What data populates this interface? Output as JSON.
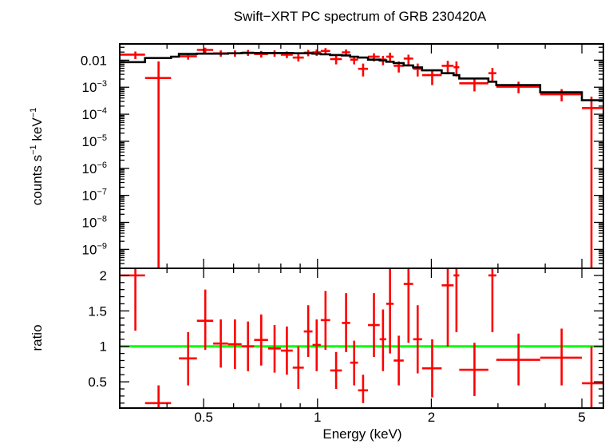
{
  "chart_data": [
    {
      "type": "scatter",
      "title": "Swift−XRT PC spectrum of GRB 230420A",
      "ylabel_main": "counts s",
      "ylabel_exp1": "−1",
      "ylabel_mid": " keV",
      "ylabel_exp2": "−1",
      "xscale": "log",
      "yscale": "log",
      "xlim": [
        0.3,
        5.7
      ],
      "ylim": [
        2e-10,
        0.04
      ],
      "y_ticks": [
        {
          "value": 0.01,
          "base": "0.01",
          "exp": ""
        },
        {
          "value": 0.001,
          "base": "10",
          "exp": "−3"
        },
        {
          "value": 0.0001,
          "base": "10",
          "exp": "−4"
        },
        {
          "value": 1e-05,
          "base": "10",
          "exp": "−5"
        },
        {
          "value": 1e-06,
          "base": "10",
          "exp": "−6"
        },
        {
          "value": 1e-07,
          "base": "10",
          "exp": "−7"
        },
        {
          "value": 1e-08,
          "base": "10",
          "exp": "−8"
        },
        {
          "value": 1e-09,
          "base": "10",
          "exp": "−9"
        }
      ],
      "data_color": "#ff0000",
      "model_color": "#000000",
      "series": [
        {
          "points": [
            {
              "x": 0.33,
              "xlo": 0.3,
              "xhi": 0.35,
              "y": 0.016,
              "ylo": 0.011,
              "yhi": 0.021
            },
            {
              "x": 0.38,
              "xlo": 0.35,
              "xhi": 0.41,
              "y": 0.0022,
              "ylo": 2e-10,
              "yhi": 0.009
            },
            {
              "x": 0.455,
              "xlo": 0.43,
              "xhi": 0.48,
              "y": 0.014,
              "ylo": 0.0105,
              "yhi": 0.018
            },
            {
              "x": 0.505,
              "xlo": 0.48,
              "xhi": 0.53,
              "y": 0.024,
              "ylo": 0.019,
              "yhi": 0.029
            },
            {
              "x": 0.555,
              "xlo": 0.53,
              "xhi": 0.58,
              "y": 0.018,
              "ylo": 0.0135,
              "yhi": 0.023
            },
            {
              "x": 0.605,
              "xlo": 0.58,
              "xhi": 0.63,
              "y": 0.018,
              "ylo": 0.0135,
              "yhi": 0.023
            },
            {
              "x": 0.655,
              "xlo": 0.63,
              "xhi": 0.68,
              "y": 0.019,
              "ylo": 0.0145,
              "yhi": 0.024
            },
            {
              "x": 0.71,
              "xlo": 0.68,
              "xhi": 0.74,
              "y": 0.017,
              "ylo": 0.0125,
              "yhi": 0.022
            },
            {
              "x": 0.77,
              "xlo": 0.74,
              "xhi": 0.8,
              "y": 0.018,
              "ylo": 0.0135,
              "yhi": 0.023
            },
            {
              "x": 0.83,
              "xlo": 0.8,
              "xhi": 0.86,
              "y": 0.016,
              "ylo": 0.012,
              "yhi": 0.021
            },
            {
              "x": 0.89,
              "xlo": 0.86,
              "xhi": 0.92,
              "y": 0.0125,
              "ylo": 0.009,
              "yhi": 0.017
            },
            {
              "x": 0.945,
              "xlo": 0.92,
              "xhi": 0.97,
              "y": 0.019,
              "ylo": 0.014,
              "yhi": 0.024
            },
            {
              "x": 0.995,
              "xlo": 0.97,
              "xhi": 1.02,
              "y": 0.0195,
              "ylo": 0.0145,
              "yhi": 0.025
            },
            {
              "x": 1.05,
              "xlo": 1.02,
              "xhi": 1.08,
              "y": 0.022,
              "ylo": 0.017,
              "yhi": 0.028
            },
            {
              "x": 1.12,
              "xlo": 1.08,
              "xhi": 1.16,
              "y": 0.011,
              "ylo": 0.007,
              "yhi": 0.015
            },
            {
              "x": 1.19,
              "xlo": 1.16,
              "xhi": 1.22,
              "y": 0.0195,
              "ylo": 0.0145,
              "yhi": 0.025
            },
            {
              "x": 1.25,
              "xlo": 1.22,
              "xhi": 1.28,
              "y": 0.0105,
              "ylo": 0.007,
              "yhi": 0.014
            },
            {
              "x": 1.32,
              "xlo": 1.28,
              "xhi": 1.36,
              "y": 0.0048,
              "ylo": 0.0025,
              "yhi": 0.0075
            },
            {
              "x": 1.41,
              "xlo": 1.36,
              "xhi": 1.46,
              "y": 0.0135,
              "ylo": 0.009,
              "yhi": 0.018
            },
            {
              "x": 1.49,
              "xlo": 1.46,
              "xhi": 1.52,
              "y": 0.0105,
              "ylo": 0.0065,
              "yhi": 0.0145
            },
            {
              "x": 1.555,
              "xlo": 1.52,
              "xhi": 1.59,
              "y": 0.0135,
              "ylo": 0.0085,
              "yhi": 0.019
            },
            {
              "x": 1.64,
              "xlo": 1.59,
              "xhi": 1.69,
              "y": 0.0062,
              "ylo": 0.0035,
              "yhi": 0.009
            },
            {
              "x": 1.74,
              "xlo": 1.69,
              "xhi": 1.79,
              "y": 0.0115,
              "ylo": 0.0065,
              "yhi": 0.016
            },
            {
              "x": 1.84,
              "xlo": 1.79,
              "xhi": 1.89,
              "y": 0.0048,
              "ylo": 0.0025,
              "yhi": 0.0075
            },
            {
              "x": 2.01,
              "xlo": 1.89,
              "xhi": 2.13,
              "y": 0.0028,
              "ylo": 0.0012,
              "yhi": 0.0045
            },
            {
              "x": 2.21,
              "xlo": 2.13,
              "xhi": 2.29,
              "y": 0.0062,
              "ylo": 0.003,
              "yhi": 0.0095
            },
            {
              "x": 2.33,
              "xlo": 2.29,
              "xhi": 2.37,
              "y": 0.0055,
              "ylo": 0.0025,
              "yhi": 0.009
            },
            {
              "x": 2.6,
              "xlo": 2.37,
              "xhi": 2.83,
              "y": 0.0014,
              "ylo": 0.0007,
              "yhi": 0.0022
            },
            {
              "x": 2.9,
              "xlo": 2.83,
              "xhi": 2.97,
              "y": 0.0033,
              "ylo": 0.0015,
              "yhi": 0.0052
            },
            {
              "x": 3.4,
              "xlo": 2.97,
              "xhi": 3.88,
              "y": 0.00105,
              "ylo": 0.0006,
              "yhi": 0.0016
            },
            {
              "x": 4.42,
              "xlo": 3.88,
              "xhi": 5.0,
              "y": 0.00055,
              "ylo": 0.0003,
              "yhi": 0.00085
            },
            {
              "x": 5.3,
              "xlo": 5.0,
              "xhi": 5.7,
              "y": 0.00017,
              "ylo": 2e-10,
              "yhi": 0.00045
            }
          ],
          "model_steps": [
            {
              "xlo": 0.3,
              "xhi": 0.35,
              "y": 0.0085
            },
            {
              "xlo": 0.35,
              "xhi": 0.41,
              "y": 0.012
            },
            {
              "xlo": 0.41,
              "xhi": 0.43,
              "y": 0.0135
            },
            {
              "xlo": 0.43,
              "xhi": 0.48,
              "y": 0.017
            },
            {
              "xlo": 0.48,
              "xhi": 0.53,
              "y": 0.0175
            },
            {
              "xlo": 0.53,
              "xhi": 0.58,
              "y": 0.0175
            },
            {
              "xlo": 0.58,
              "xhi": 0.63,
              "y": 0.018
            },
            {
              "xlo": 0.63,
              "xhi": 0.68,
              "y": 0.0185
            },
            {
              "xlo": 0.68,
              "xhi": 0.74,
              "y": 0.0185
            },
            {
              "xlo": 0.74,
              "xhi": 0.8,
              "y": 0.0185
            },
            {
              "xlo": 0.8,
              "xhi": 0.86,
              "y": 0.0185
            },
            {
              "xlo": 0.86,
              "xhi": 0.92,
              "y": 0.018
            },
            {
              "xlo": 0.92,
              "xhi": 0.97,
              "y": 0.018
            },
            {
              "xlo": 0.97,
              "xhi": 1.02,
              "y": 0.0175
            },
            {
              "xlo": 1.02,
              "xhi": 1.08,
              "y": 0.0165
            },
            {
              "xlo": 1.08,
              "xhi": 1.16,
              "y": 0.0155
            },
            {
              "xlo": 1.16,
              "xhi": 1.22,
              "y": 0.015
            },
            {
              "xlo": 1.22,
              "xhi": 1.28,
              "y": 0.0135
            },
            {
              "xlo": 1.28,
              "xhi": 1.36,
              "y": 0.0125
            },
            {
              "xlo": 1.36,
              "xhi": 1.46,
              "y": 0.0105
            },
            {
              "xlo": 1.46,
              "xhi": 1.52,
              "y": 0.0098
            },
            {
              "xlo": 1.52,
              "xhi": 1.59,
              "y": 0.0088
            },
            {
              "xlo": 1.59,
              "xhi": 1.69,
              "y": 0.0078
            },
            {
              "xlo": 1.69,
              "xhi": 1.79,
              "y": 0.0064
            },
            {
              "xlo": 1.79,
              "xhi": 1.89,
              "y": 0.0054
            },
            {
              "xlo": 1.89,
              "xhi": 2.13,
              "y": 0.0042
            },
            {
              "xlo": 2.13,
              "xhi": 2.29,
              "y": 0.0033
            },
            {
              "xlo": 2.29,
              "xhi": 2.37,
              "y": 0.0028
            },
            {
              "xlo": 2.37,
              "xhi": 2.83,
              "y": 0.0021
            },
            {
              "xlo": 2.83,
              "xhi": 2.97,
              "y": 0.0016
            },
            {
              "xlo": 2.97,
              "xhi": 3.88,
              "y": 0.0012
            },
            {
              "xlo": 3.88,
              "xhi": 5.0,
              "y": 0.00065
            },
            {
              "xlo": 5.0,
              "xhi": 5.7,
              "y": 0.00033
            }
          ]
        }
      ]
    },
    {
      "type": "scatter",
      "ylabel": "ratio",
      "xlabel": "Energy (keV)",
      "xscale": "log",
      "xlim": [
        0.3,
        5.7
      ],
      "ylim": [
        0.13,
        2.1
      ],
      "x_ticks": [
        {
          "value": 0.5,
          "label": "0.5"
        },
        {
          "value": 1,
          "label": "1"
        },
        {
          "value": 2,
          "label": "2"
        },
        {
          "value": 5,
          "label": "5"
        }
      ],
      "y_ticks": [
        {
          "value": 0.5,
          "label": "0.5"
        },
        {
          "value": 1,
          "label": "1"
        },
        {
          "value": 1.5,
          "label": "1.5"
        },
        {
          "value": 2,
          "label": "2"
        }
      ],
      "reference_line": {
        "value": 1,
        "color": "#00ff00"
      },
      "data_color": "#ff0000",
      "series": [
        {
          "points": [
            {
              "x": 0.33,
              "xlo": 0.3,
              "xhi": 0.35,
              "y": 2.0,
              "ylo": 1.22,
              "yhi": 2.1
            },
            {
              "x": 0.38,
              "xlo": 0.35,
              "xhi": 0.41,
              "y": 0.2,
              "ylo": 0.13,
              "yhi": 0.45
            },
            {
              "x": 0.455,
              "xlo": 0.43,
              "xhi": 0.48,
              "y": 0.83,
              "ylo": 0.45,
              "yhi": 1.2
            },
            {
              "x": 0.505,
              "xlo": 0.48,
              "xhi": 0.53,
              "y": 1.36,
              "ylo": 0.95,
              "yhi": 1.8
            },
            {
              "x": 0.555,
              "xlo": 0.53,
              "xhi": 0.58,
              "y": 1.04,
              "ylo": 0.7,
              "yhi": 1.38
            },
            {
              "x": 0.605,
              "xlo": 0.58,
              "xhi": 0.63,
              "y": 1.03,
              "ylo": 0.68,
              "yhi": 1.38
            },
            {
              "x": 0.655,
              "xlo": 0.63,
              "xhi": 0.68,
              "y": 1.0,
              "ylo": 0.65,
              "yhi": 1.35
            },
            {
              "x": 0.71,
              "xlo": 0.68,
              "xhi": 0.74,
              "y": 1.09,
              "ylo": 0.73,
              "yhi": 1.45
            },
            {
              "x": 0.77,
              "xlo": 0.74,
              "xhi": 0.8,
              "y": 0.97,
              "ylo": 0.63,
              "yhi": 1.3
            },
            {
              "x": 0.83,
              "xlo": 0.8,
              "xhi": 0.86,
              "y": 0.94,
              "ylo": 0.6,
              "yhi": 1.28
            },
            {
              "x": 0.89,
              "xlo": 0.86,
              "xhi": 0.92,
              "y": 0.7,
              "ylo": 0.4,
              "yhi": 1.0
            },
            {
              "x": 0.945,
              "xlo": 0.92,
              "xhi": 0.97,
              "y": 1.21,
              "ylo": 0.85,
              "yhi": 1.58
            },
            {
              "x": 0.995,
              "xlo": 0.97,
              "xhi": 1.02,
              "y": 1.02,
              "ylo": 0.65,
              "yhi": 1.38
            },
            {
              "x": 1.05,
              "xlo": 1.02,
              "xhi": 1.08,
              "y": 1.37,
              "ylo": 0.95,
              "yhi": 1.78
            },
            {
              "x": 1.12,
              "xlo": 1.08,
              "xhi": 1.16,
              "y": 0.66,
              "ylo": 0.4,
              "yhi": 0.92
            },
            {
              "x": 1.19,
              "xlo": 1.16,
              "xhi": 1.22,
              "y": 1.33,
              "ylo": 0.92,
              "yhi": 1.75
            },
            {
              "x": 1.25,
              "xlo": 1.22,
              "xhi": 1.28,
              "y": 0.77,
              "ylo": 0.45,
              "yhi": 1.08
            },
            {
              "x": 1.32,
              "xlo": 1.28,
              "xhi": 1.36,
              "y": 0.38,
              "ylo": 0.2,
              "yhi": 0.6
            },
            {
              "x": 1.41,
              "xlo": 1.36,
              "xhi": 1.46,
              "y": 1.3,
              "ylo": 0.85,
              "yhi": 1.75
            },
            {
              "x": 1.49,
              "xlo": 1.46,
              "xhi": 1.52,
              "y": 1.1,
              "ylo": 0.65,
              "yhi": 1.52
            },
            {
              "x": 1.555,
              "xlo": 1.52,
              "xhi": 1.59,
              "y": 1.6,
              "ylo": 0.9,
              "yhi": 2.1
            },
            {
              "x": 1.64,
              "xlo": 1.59,
              "xhi": 1.69,
              "y": 0.8,
              "ylo": 0.45,
              "yhi": 1.15
            },
            {
              "x": 1.74,
              "xlo": 1.69,
              "xhi": 1.79,
              "y": 1.88,
              "ylo": 1.05,
              "yhi": 2.1
            },
            {
              "x": 1.84,
              "xlo": 1.79,
              "xhi": 1.89,
              "y": 1.1,
              "ylo": 0.62,
              "yhi": 1.58
            },
            {
              "x": 2.01,
              "xlo": 1.89,
              "xhi": 2.13,
              "y": 0.69,
              "ylo": 0.28,
              "yhi": 1.1
            },
            {
              "x": 2.21,
              "xlo": 2.13,
              "xhi": 2.29,
              "y": 1.86,
              "ylo": 1.0,
              "yhi": 2.1
            },
            {
              "x": 2.33,
              "xlo": 2.29,
              "xhi": 2.37,
              "y": 2.0,
              "ylo": 1.2,
              "yhi": 2.1
            },
            {
              "x": 2.6,
              "xlo": 2.37,
              "xhi": 2.83,
              "y": 0.67,
              "ylo": 0.3,
              "yhi": 1.05
            },
            {
              "x": 2.9,
              "xlo": 2.83,
              "xhi": 2.97,
              "y": 2.0,
              "ylo": 1.2,
              "yhi": 2.1
            },
            {
              "x": 3.4,
              "xlo": 2.97,
              "xhi": 3.88,
              "y": 0.81,
              "ylo": 0.45,
              "yhi": 1.18
            },
            {
              "x": 4.42,
              "xlo": 3.88,
              "xhi": 5.0,
              "y": 0.84,
              "ylo": 0.45,
              "yhi": 1.25
            },
            {
              "x": 5.3,
              "xlo": 5.0,
              "xhi": 5.7,
              "y": 0.48,
              "ylo": 0.13,
              "yhi": 1.0
            }
          ]
        }
      ]
    }
  ]
}
